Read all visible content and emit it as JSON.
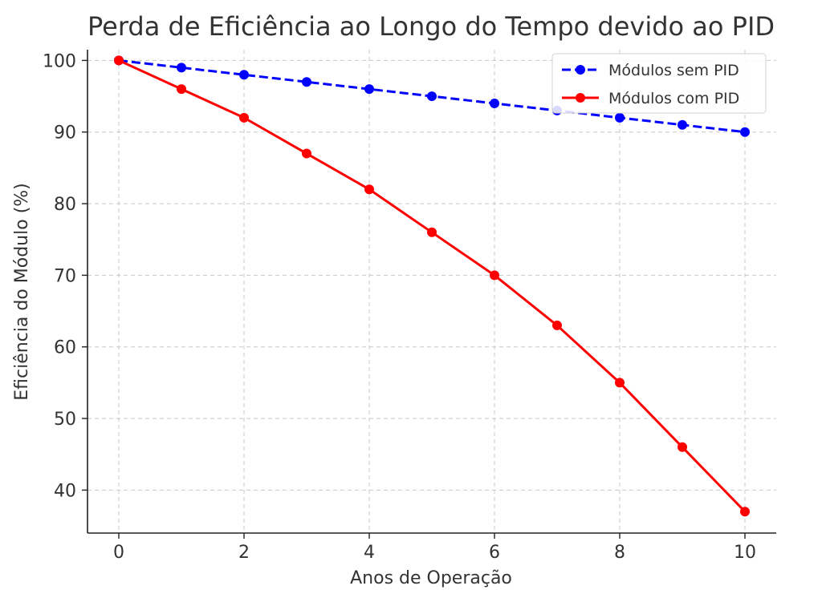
{
  "chart_data": {
    "type": "line",
    "title": "Perda de Eficiência ao Longo do Tempo devido ao PID",
    "xlabel": "Anos de Operação",
    "ylabel": "Eficiência do Módulo (%)",
    "x": [
      0,
      1,
      2,
      3,
      4,
      5,
      6,
      7,
      8,
      9,
      10
    ],
    "xlim": [
      -0.5,
      10.5
    ],
    "ylim": [
      34,
      101.5
    ],
    "x_ticks": [
      "0",
      "2",
      "4",
      "6",
      "8",
      "10"
    ],
    "y_ticks": [
      "40",
      "50",
      "60",
      "70",
      "80",
      "90",
      "100"
    ],
    "grid": true,
    "legend_position": "top-right",
    "series": [
      {
        "name": "Módulos sem PID",
        "values": [
          100,
          99,
          98,
          97,
          96,
          95,
          94,
          93,
          92,
          91,
          90
        ],
        "color": "#0000ff",
        "line_style": "dashed",
        "marker": "circle"
      },
      {
        "name": "Módulos com PID",
        "values": [
          100,
          96,
          92,
          87,
          82,
          76,
          70,
          63,
          55,
          46,
          37
        ],
        "color": "#ff0000",
        "line_style": "solid",
        "marker": "circle"
      }
    ]
  }
}
